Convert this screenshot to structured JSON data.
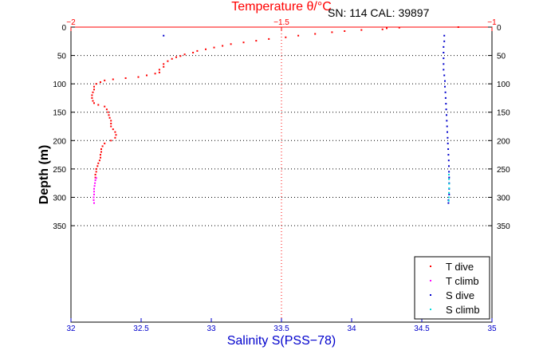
{
  "chart_data": {
    "type": "scatter",
    "title": "SN: 114  CAL: 39897",
    "top_axis": {
      "label": "Temperature θ/°C",
      "range": [
        -2,
        -1
      ],
      "ticks": [
        -2,
        -1.5,
        -1
      ],
      "tick_labels": [
        "−2",
        "−1.5",
        "−1"
      ],
      "color": "#ff0000"
    },
    "bottom_axis": {
      "label": "Salinity S(PSS−78)",
      "range": [
        32,
        35
      ],
      "ticks": [
        32,
        32.5,
        33,
        33.5,
        34,
        34.5,
        35
      ],
      "tick_labels": [
        "32",
        "32.5",
        "33",
        "33.5",
        "34",
        "34.5",
        "35"
      ],
      "color": "#0000cc"
    },
    "y_axis": {
      "label": "Depth (m)",
      "range": [
        0,
        520
      ],
      "reversed": true,
      "ticks": [
        0,
        50,
        100,
        150,
        200,
        250,
        300,
        350
      ],
      "tick_labels": [
        "0",
        "50",
        "100",
        "150",
        "200",
        "250",
        "300",
        "350"
      ]
    },
    "grid": "dotted horizontal at depth ticks; vertical at salinity 33.5",
    "legend_position": "bottom-right",
    "series": [
      {
        "name": "T dive",
        "axis": "temperature",
        "color": "#ff0000",
        "points": [
          [
            -1.08,
            0
          ],
          [
            -1.22,
            1
          ],
          [
            -1.25,
            2
          ],
          [
            -1.26,
            4
          ],
          [
            -1.31,
            5
          ],
          [
            -1.35,
            7
          ],
          [
            -1.38,
            9
          ],
          [
            -1.42,
            12
          ],
          [
            -1.46,
            15
          ],
          [
            -1.49,
            18
          ],
          [
            -1.53,
            21
          ],
          [
            -1.56,
            24
          ],
          [
            -1.59,
            27
          ],
          [
            -1.62,
            30
          ],
          [
            -1.64,
            33
          ],
          [
            -1.66,
            36
          ],
          [
            -1.68,
            39
          ],
          [
            -1.7,
            42
          ],
          [
            -1.71,
            45
          ],
          [
            -1.73,
            48
          ],
          [
            -1.74,
            51
          ],
          [
            -1.75,
            53
          ],
          [
            -1.76,
            56
          ],
          [
            -1.77,
            60
          ],
          [
            -1.78,
            65
          ],
          [
            -1.78,
            70
          ],
          [
            -1.79,
            75
          ],
          [
            -1.79,
            80
          ],
          [
            -1.8,
            82
          ],
          [
            -1.82,
            85
          ],
          [
            -1.84,
            88
          ],
          [
            -1.87,
            90
          ],
          [
            -1.9,
            92
          ],
          [
            -1.92,
            94
          ],
          [
            -1.93,
            97
          ],
          [
            -1.94,
            100
          ],
          [
            -1.945,
            105
          ],
          [
            -1.945,
            110
          ],
          [
            -1.948,
            115
          ],
          [
            -1.95,
            120
          ],
          [
            -1.95,
            125
          ],
          [
            -1.948,
            130
          ],
          [
            -1.945,
            134
          ],
          [
            -1.935,
            137
          ],
          [
            -1.92,
            140
          ],
          [
            -1.915,
            145
          ],
          [
            -1.912,
            150
          ],
          [
            -1.91,
            155
          ],
          [
            -1.908,
            160
          ],
          [
            -1.905,
            165
          ],
          [
            -1.905,
            170
          ],
          [
            -1.905,
            175
          ],
          [
            -1.9,
            180
          ],
          [
            -1.895,
            185
          ],
          [
            -1.893,
            190
          ],
          [
            -1.895,
            195
          ],
          [
            -1.905,
            200
          ],
          [
            -1.92,
            205
          ],
          [
            -1.925,
            210
          ],
          [
            -1.928,
            215
          ],
          [
            -1.928,
            220
          ],
          [
            -1.93,
            225
          ],
          [
            -1.93,
            230
          ],
          [
            -1.932,
            235
          ],
          [
            -1.935,
            240
          ],
          [
            -1.937,
            245
          ],
          [
            -1.94,
            250
          ],
          [
            -1.94,
            255
          ],
          [
            -1.942,
            260
          ],
          [
            -1.942,
            265
          ]
        ]
      },
      {
        "name": "T climb",
        "axis": "temperature",
        "color": "#ff00ff",
        "points": [
          [
            -1.94,
            266
          ],
          [
            -1.942,
            270
          ],
          [
            -1.943,
            275
          ],
          [
            -1.944,
            280
          ],
          [
            -1.945,
            285
          ],
          [
            -1.945,
            290
          ],
          [
            -1.945,
            295
          ],
          [
            -1.946,
            300
          ],
          [
            -1.946,
            305
          ],
          [
            -1.945,
            310
          ]
        ]
      },
      {
        "name": "S dive",
        "axis": "salinity",
        "color": "#0000cc",
        "points": [
          [
            32.66,
            15
          ],
          [
            34.66,
            15
          ],
          [
            34.66,
            25
          ],
          [
            34.655,
            35
          ],
          [
            34.655,
            45
          ],
          [
            34.655,
            55
          ],
          [
            34.655,
            65
          ],
          [
            34.655,
            75
          ],
          [
            34.66,
            85
          ],
          [
            34.665,
            95
          ],
          [
            34.665,
            105
          ],
          [
            34.668,
            115
          ],
          [
            34.67,
            125
          ],
          [
            34.672,
            135
          ],
          [
            34.674,
            145
          ],
          [
            34.676,
            155
          ],
          [
            34.678,
            165
          ],
          [
            34.68,
            175
          ],
          [
            34.682,
            185
          ],
          [
            34.684,
            195
          ],
          [
            34.686,
            205
          ],
          [
            34.688,
            215
          ],
          [
            34.69,
            225
          ],
          [
            34.692,
            235
          ],
          [
            34.693,
            245
          ],
          [
            34.694,
            255
          ],
          [
            34.695,
            265
          ],
          [
            34.695,
            275
          ],
          [
            34.695,
            285
          ],
          [
            34.695,
            295
          ],
          [
            34.69,
            305
          ],
          [
            34.69,
            310
          ]
        ]
      },
      {
        "name": "S climb",
        "axis": "salinity",
        "color": "#00dddd",
        "points": [
          [
            34.693,
            260
          ],
          [
            34.694,
            268
          ],
          [
            34.695,
            276
          ],
          [
            34.695,
            284
          ],
          [
            34.694,
            292
          ],
          [
            34.693,
            300
          ],
          [
            34.692,
            306
          ]
        ]
      }
    ]
  }
}
